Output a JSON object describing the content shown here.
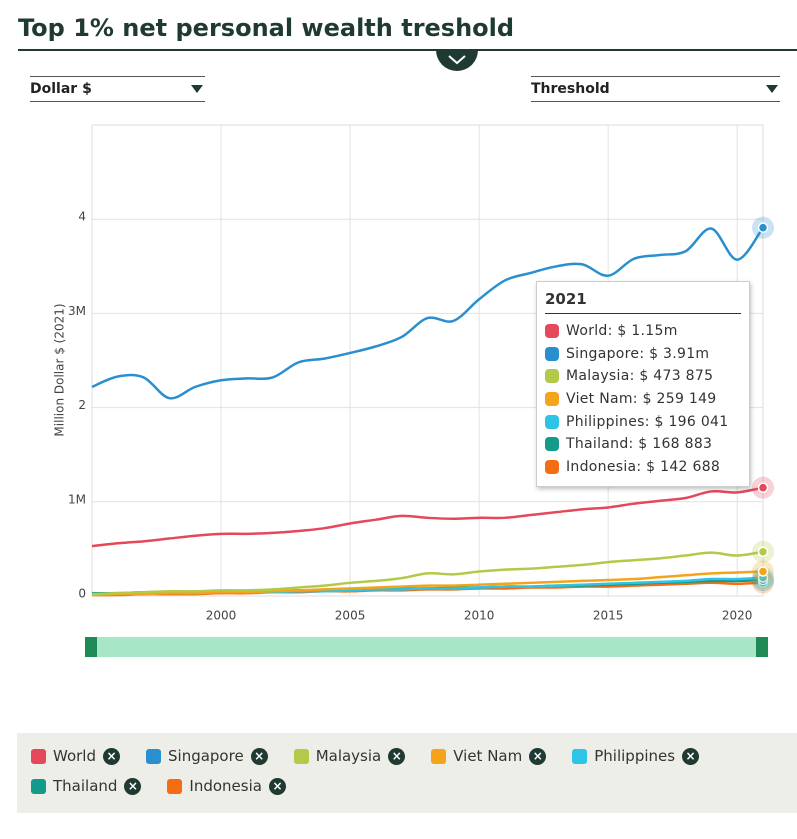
{
  "header": {
    "title": "Top 1% net personal wealth treshold"
  },
  "controls": {
    "currency": "Dollar $",
    "indicator": "Threshold"
  },
  "chart_data": {
    "type": "line",
    "y_label": "Million Dollar $ (2021)",
    "x": [
      1995,
      1996,
      1997,
      1998,
      1999,
      2000,
      2001,
      2002,
      2003,
      2004,
      2005,
      2006,
      2007,
      2008,
      2009,
      2010,
      2011,
      2012,
      2013,
      2014,
      2015,
      2016,
      2017,
      2018,
      2019,
      2020,
      2021
    ],
    "xlim": [
      1995,
      2021
    ],
    "xticks": [
      2000,
      2005,
      2010,
      2015,
      2020
    ],
    "ylim": [
      0,
      5
    ],
    "yticks": [
      0,
      {
        "value": 1,
        "label": "1M"
      },
      2,
      {
        "value": 3,
        "label": "3M"
      },
      4
    ],
    "grid": true,
    "series": [
      {
        "name": "World",
        "color": "#e4485a",
        "values": [
          0.53,
          0.56,
          0.58,
          0.61,
          0.64,
          0.66,
          0.66,
          0.67,
          0.69,
          0.72,
          0.77,
          0.81,
          0.85,
          0.83,
          0.82,
          0.83,
          0.83,
          0.86,
          0.89,
          0.92,
          0.94,
          0.98,
          1.01,
          1.04,
          1.11,
          1.1,
          1.15
        ]
      },
      {
        "name": "Singapore",
        "color": "#2a8fcf",
        "values": [
          2.22,
          2.33,
          2.32,
          2.1,
          2.22,
          2.29,
          2.31,
          2.32,
          2.48,
          2.52,
          2.58,
          2.65,
          2.75,
          2.95,
          2.92,
          3.15,
          3.35,
          3.43,
          3.5,
          3.52,
          3.4,
          3.58,
          3.62,
          3.66,
          3.9,
          3.57,
          3.91
        ]
      },
      {
        "name": "Malaysia",
        "color": "#b3c94a",
        "values": [
          0.02,
          0.03,
          0.04,
          0.05,
          0.05,
          0.06,
          0.06,
          0.07,
          0.09,
          0.11,
          0.14,
          0.16,
          0.19,
          0.24,
          0.23,
          0.26,
          0.28,
          0.29,
          0.31,
          0.33,
          0.36,
          0.38,
          0.4,
          0.43,
          0.46,
          0.43,
          0.47
        ]
      },
      {
        "name": "Viet Nam",
        "color": "#f4a31a",
        "values": [
          0.01,
          0.02,
          0.02,
          0.03,
          0.03,
          0.04,
          0.04,
          0.05,
          0.06,
          0.07,
          0.08,
          0.09,
          0.1,
          0.11,
          0.11,
          0.12,
          0.13,
          0.14,
          0.15,
          0.16,
          0.17,
          0.18,
          0.2,
          0.22,
          0.24,
          0.25,
          0.26
        ]
      },
      {
        "name": "Philippines",
        "color": "#2ec4e6",
        "values": [
          0.02,
          0.02,
          0.03,
          0.03,
          0.03,
          0.04,
          0.04,
          0.04,
          0.05,
          0.05,
          0.06,
          0.07,
          0.07,
          0.08,
          0.08,
          0.09,
          0.1,
          0.1,
          0.11,
          0.12,
          0.13,
          0.14,
          0.15,
          0.16,
          0.18,
          0.18,
          0.196
        ]
      },
      {
        "name": "Thailand",
        "color": "#139a8a",
        "values": [
          0.03,
          0.03,
          0.04,
          0.04,
          0.04,
          0.05,
          0.05,
          0.05,
          0.06,
          0.06,
          0.07,
          0.07,
          0.08,
          0.08,
          0.09,
          0.09,
          0.1,
          0.1,
          0.11,
          0.11,
          0.12,
          0.13,
          0.14,
          0.15,
          0.16,
          0.16,
          0.169
        ]
      },
      {
        "name": "Indonesia",
        "color": "#f56d12",
        "values": [
          0.01,
          0.01,
          0.02,
          0.02,
          0.02,
          0.03,
          0.03,
          0.04,
          0.04,
          0.05,
          0.05,
          0.06,
          0.06,
          0.07,
          0.07,
          0.08,
          0.08,
          0.09,
          0.09,
          0.1,
          0.1,
          0.11,
          0.12,
          0.13,
          0.14,
          0.13,
          0.143
        ]
      }
    ],
    "tooltip": {
      "title": "2021",
      "items": [
        "World: $ 1.15m",
        "Singapore: $ 3.91m",
        "Malaysia: $ 473 875",
        "Viet Nam: $ 259 149",
        "Philippines: $ 196 041",
        "Thailand: $ 168 883",
        "Indonesia: $ 142 688"
      ]
    }
  }
}
